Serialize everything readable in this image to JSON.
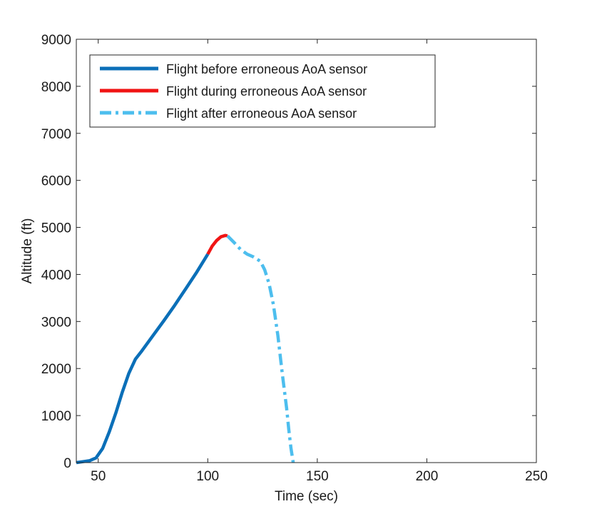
{
  "chart_data": {
    "type": "line",
    "title": "",
    "xlabel": "Time (sec)",
    "ylabel": "Altitude (ft)",
    "xlim": [
      40,
      250
    ],
    "ylim": [
      0,
      9000
    ],
    "xticks": [
      50,
      100,
      150,
      200,
      250
    ],
    "yticks": [
      0,
      1000,
      2000,
      3000,
      4000,
      5000,
      6000,
      7000,
      8000,
      9000
    ],
    "grid": false,
    "legend_position": "top-left",
    "series": [
      {
        "name": "Flight before erroneous AoA sensor",
        "color": "#0b6fb8",
        "style": "solid",
        "x": [
          40,
          43,
          46,
          49,
          52,
          55,
          58,
          61,
          64,
          67,
          70,
          75,
          80,
          85,
          90,
          95,
          100
        ],
        "y": [
          0,
          20,
          40,
          100,
          300,
          650,
          1050,
          1500,
          1900,
          2200,
          2380,
          2700,
          3020,
          3350,
          3700,
          4050,
          4430
        ]
      },
      {
        "name": "Flight during erroneous AoA sensor",
        "color": "#f01414",
        "style": "solid",
        "x": [
          100,
          102,
          104,
          106,
          108,
          109
        ],
        "y": [
          4430,
          4600,
          4720,
          4800,
          4830,
          4820
        ]
      },
      {
        "name": "Flight after erroneous AoA sensor",
        "color": "#4dbeee",
        "style": "dash-dot",
        "x": [
          109,
          112,
          115,
          118,
          121,
          124,
          126,
          128,
          130,
          132,
          134,
          136,
          137,
          138,
          139
        ],
        "y": [
          4820,
          4680,
          4530,
          4430,
          4370,
          4280,
          4100,
          3800,
          3350,
          2700,
          1900,
          1150,
          700,
          300,
          0
        ]
      }
    ]
  }
}
